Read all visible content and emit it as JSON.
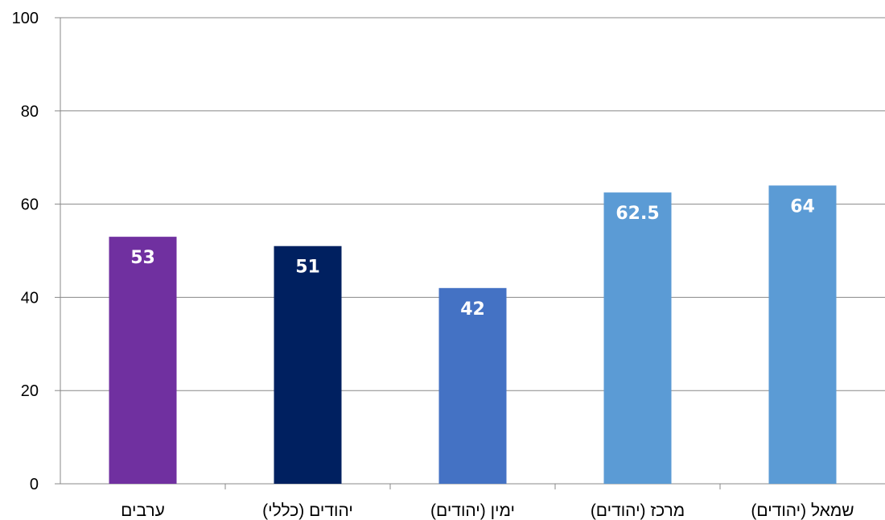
{
  "chart_data": {
    "type": "bar",
    "categories": [
      "ערבים",
      "יהודים (כללי)",
      "ימין (יהודים)",
      "מרכז (יהודים)",
      "שמאל (יהודים)"
    ],
    "values": [
      53,
      51,
      42,
      62.5,
      64
    ],
    "value_labels": [
      "53",
      "51",
      "42",
      "62.5",
      "64"
    ],
    "colors": [
      "#7030A0",
      "#002060",
      "#4472C4",
      "#5B9BD5",
      "#5B9BD5"
    ],
    "ylim": [
      0,
      100
    ],
    "yticks": [
      0,
      20,
      40,
      60,
      80,
      100
    ],
    "title": "",
    "xlabel": "",
    "ylabel": "",
    "grid": true,
    "legend": "none",
    "gridline_color": "#888888",
    "axis_color": "#888888"
  }
}
